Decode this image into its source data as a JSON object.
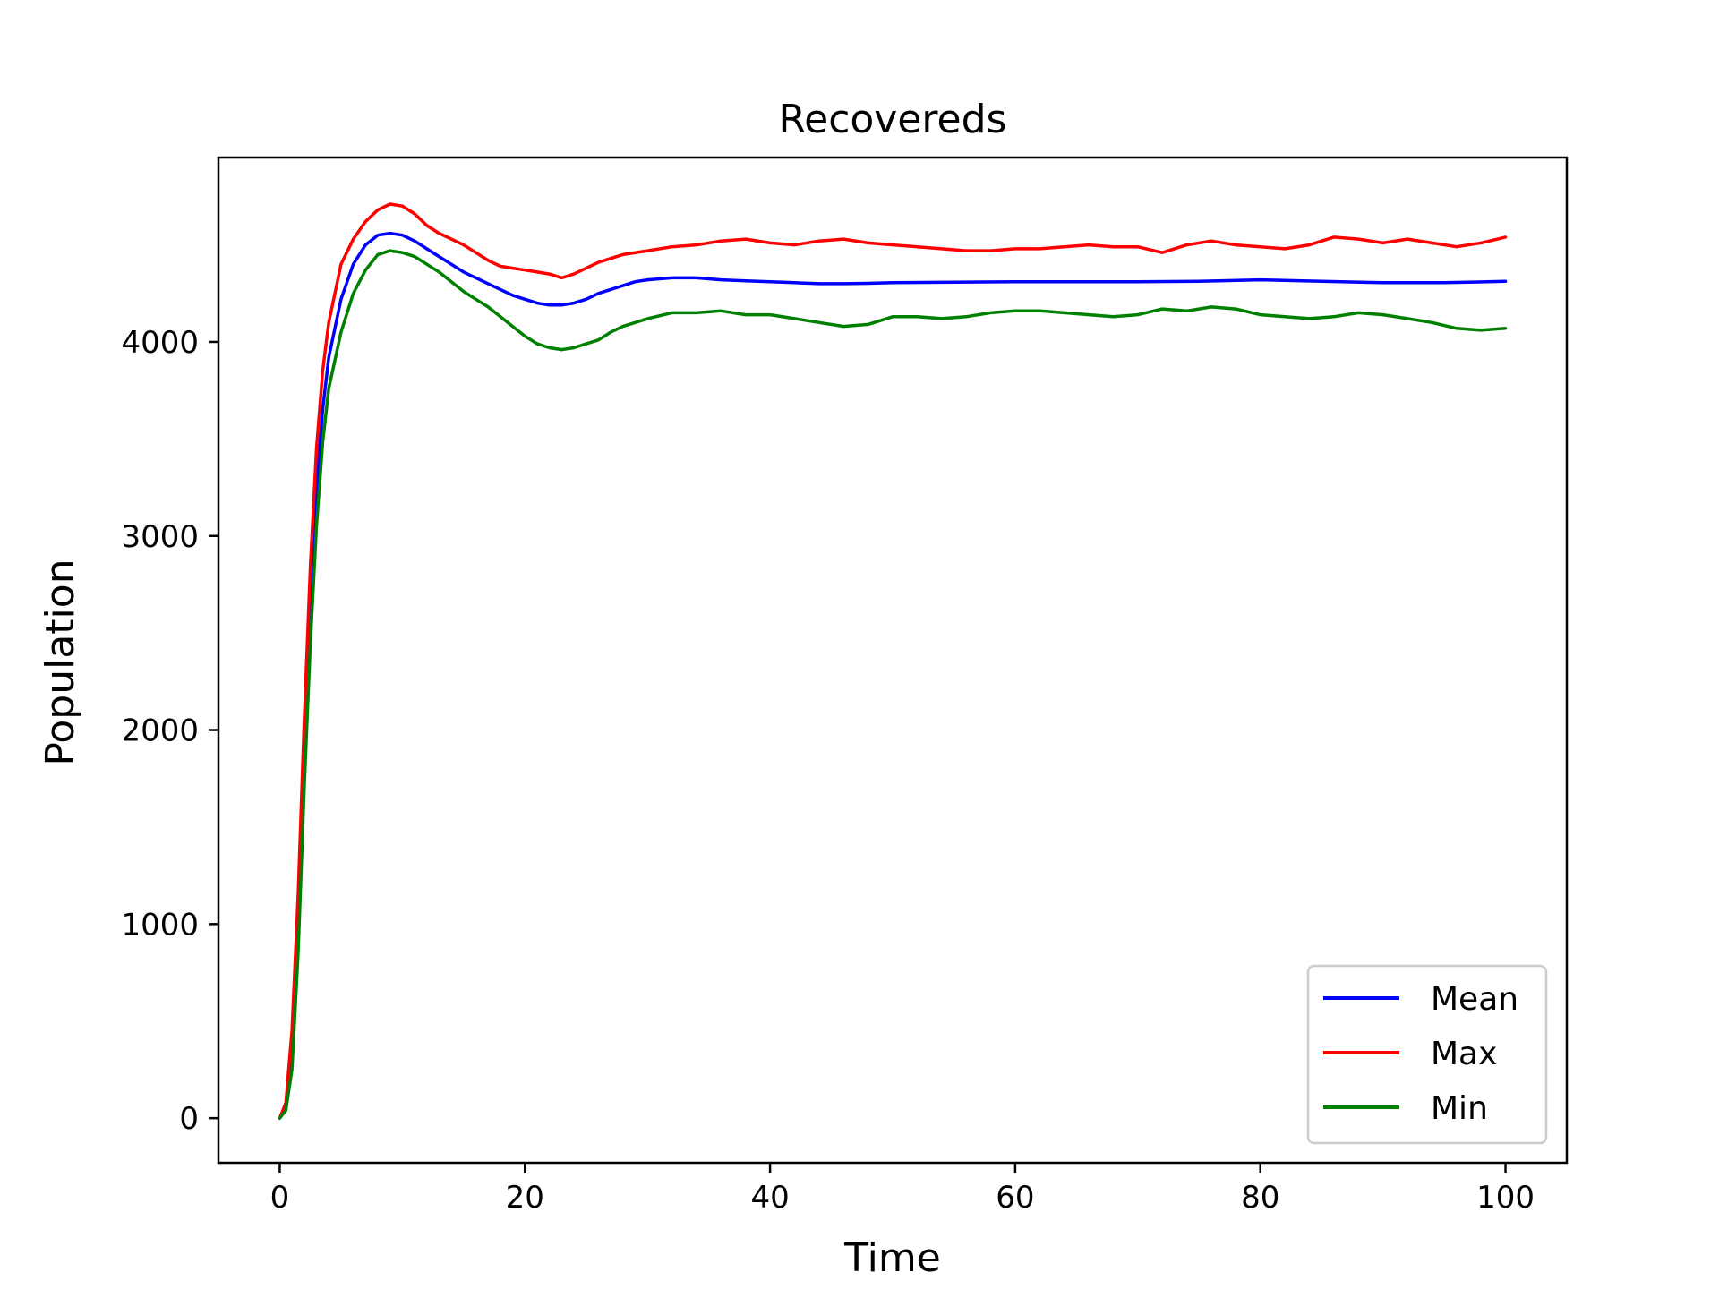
{
  "chart_data": {
    "type": "line",
    "title": "Recovereds",
    "xlabel": "Time",
    "ylabel": "Population",
    "xlim": [
      -5,
      105
    ],
    "ylim": [
      -230,
      4950
    ],
    "xticks": [
      0,
      20,
      40,
      60,
      80,
      100
    ],
    "yticks": [
      0,
      1000,
      2000,
      3000,
      4000
    ],
    "legend_position": "lower-right",
    "series": [
      {
        "name": "Mean",
        "color": "#0000ff",
        "x": [
          0,
          0.5,
          1,
          1.5,
          2,
          2.5,
          3,
          3.5,
          4,
          5,
          6,
          7,
          8,
          9,
          10,
          11,
          12,
          13,
          14,
          15,
          16,
          17,
          18,
          19,
          20,
          21,
          22,
          23,
          24,
          25,
          26,
          27,
          28,
          29,
          30,
          32,
          34,
          36,
          38,
          40,
          42,
          44,
          46,
          48,
          50,
          55,
          60,
          65,
          70,
          75,
          80,
          85,
          90,
          95,
          100
        ],
        "values": [
          0,
          60,
          350,
          1000,
          1850,
          2650,
          3250,
          3650,
          3920,
          4220,
          4400,
          4500,
          4550,
          4560,
          4550,
          4520,
          4480,
          4440,
          4400,
          4360,
          4330,
          4300,
          4270,
          4240,
          4220,
          4200,
          4190,
          4190,
          4200,
          4220,
          4250,
          4270,
          4290,
          4310,
          4320,
          4330,
          4330,
          4320,
          4315,
          4310,
          4305,
          4300,
          4300,
          4302,
          4305,
          4308,
          4310,
          4310,
          4310,
          4312,
          4320,
          4312,
          4305,
          4305,
          4312
        ]
      },
      {
        "name": "Max",
        "color": "#ff0000",
        "x": [
          0,
          0.5,
          1,
          1.5,
          2,
          2.5,
          3,
          3.5,
          4,
          5,
          6,
          7,
          8,
          9,
          10,
          11,
          12,
          13,
          14,
          15,
          16,
          17,
          18,
          19,
          20,
          21,
          22,
          23,
          24,
          25,
          26,
          27,
          28,
          30,
          32,
          34,
          36,
          38,
          40,
          42,
          44,
          46,
          48,
          50,
          52,
          54,
          56,
          58,
          60,
          62,
          64,
          66,
          68,
          70,
          72,
          74,
          76,
          78,
          80,
          82,
          84,
          86,
          88,
          90,
          92,
          94,
          96,
          98,
          100
        ],
        "values": [
          0,
          80,
          450,
          1150,
          2050,
          2850,
          3450,
          3850,
          4100,
          4400,
          4530,
          4620,
          4680,
          4710,
          4700,
          4660,
          4600,
          4560,
          4530,
          4500,
          4460,
          4420,
          4390,
          4380,
          4370,
          4360,
          4350,
          4330,
          4350,
          4380,
          4410,
          4430,
          4450,
          4470,
          4490,
          4500,
          4520,
          4530,
          4510,
          4500,
          4520,
          4530,
          4510,
          4500,
          4490,
          4480,
          4470,
          4470,
          4480,
          4480,
          4490,
          4500,
          4490,
          4490,
          4460,
          4500,
          4520,
          4500,
          4490,
          4480,
          4500,
          4540,
          4530,
          4510,
          4530,
          4510,
          4490,
          4510,
          4540
        ]
      },
      {
        "name": "Min",
        "color": "#008000",
        "x": [
          0,
          0.5,
          1,
          1.5,
          2,
          2.5,
          3,
          3.5,
          4,
          5,
          6,
          7,
          8,
          9,
          10,
          11,
          12,
          13,
          14,
          15,
          16,
          17,
          18,
          19,
          20,
          21,
          22,
          23,
          24,
          25,
          26,
          27,
          28,
          29,
          30,
          32,
          34,
          36,
          38,
          40,
          42,
          44,
          46,
          48,
          50,
          52,
          54,
          56,
          58,
          60,
          62,
          64,
          66,
          68,
          70,
          72,
          74,
          76,
          78,
          80,
          82,
          84,
          86,
          88,
          90,
          92,
          94,
          96,
          98,
          100
        ],
        "values": [
          0,
          40,
          250,
          850,
          1700,
          2450,
          3050,
          3480,
          3760,
          4050,
          4250,
          4370,
          4450,
          4470,
          4460,
          4440,
          4400,
          4360,
          4310,
          4260,
          4220,
          4180,
          4130,
          4080,
          4030,
          3990,
          3970,
          3960,
          3970,
          3990,
          4010,
          4050,
          4080,
          4100,
          4120,
          4150,
          4150,
          4160,
          4140,
          4140,
          4120,
          4100,
          4080,
          4090,
          4130,
          4130,
          4120,
          4130,
          4150,
          4160,
          4160,
          4150,
          4140,
          4130,
          4140,
          4170,
          4160,
          4180,
          4170,
          4140,
          4130,
          4120,
          4130,
          4150,
          4140,
          4120,
          4100,
          4070,
          4060,
          4070
        ]
      }
    ]
  }
}
